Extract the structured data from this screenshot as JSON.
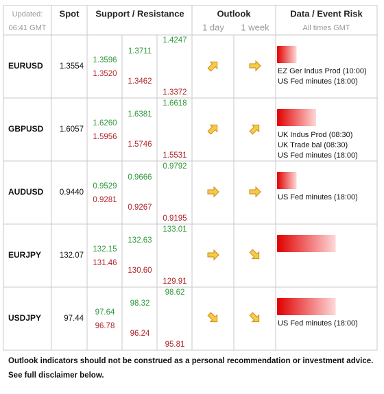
{
  "header": {
    "updated_label": "Updated:",
    "updated_time": "06:41 GMT",
    "spot": "Spot",
    "support_resistance": "Support / Resistance",
    "outlook": "Outlook",
    "outlook_day": "1 day",
    "outlook_week": "1 week",
    "data_risk": "Data / Event Risk",
    "times_note": "All times GMT"
  },
  "rows": [
    {
      "pair": "EURUSD",
      "spot": "1.3554",
      "resistance": [
        "1.3596",
        "1.3711",
        "1.4247"
      ],
      "support": [
        "1.3520",
        "1.3462",
        "1.3372"
      ],
      "outlook": [
        "up-right",
        "right"
      ],
      "risk": 1,
      "events": [
        "EZ Ger Indus Prod (10:00)",
        "US Fed minutes (18:00)"
      ]
    },
    {
      "pair": "GBPUSD",
      "spot": "1.6057",
      "resistance": [
        "1.6260",
        "1.6381",
        "1.6618"
      ],
      "support": [
        "1.5956",
        "1.5746",
        "1.5531"
      ],
      "outlook": [
        "up-right",
        "up-right"
      ],
      "risk": 2,
      "events": [
        "UK Indus Prod (08:30)",
        "UK Trade bal (08:30)",
        "US Fed minutes (18:00)"
      ]
    },
    {
      "pair": "AUDUSD",
      "spot": "0.9440",
      "resistance": [
        "0.9529",
        "0.9666",
        "0.9792"
      ],
      "support": [
        "0.9281",
        "0.9267",
        "0.9195"
      ],
      "outlook": [
        "right",
        "right"
      ],
      "risk": 1,
      "events": [
        "US Fed minutes (18:00)"
      ]
    },
    {
      "pair": "EURJPY",
      "spot": "132.07",
      "resistance": [
        "132.15",
        "132.63",
        "133.01"
      ],
      "support": [
        "131.46",
        "130.60",
        "129.91"
      ],
      "outlook": [
        "right",
        "down-right"
      ],
      "risk": 3,
      "events": []
    },
    {
      "pair": "USDJPY",
      "spot": "97.44",
      "resistance": [
        "97.64",
        "98.32",
        "98.62"
      ],
      "support": [
        "96.78",
        "96.24",
        "95.81"
      ],
      "outlook": [
        "down-right",
        "down-right"
      ],
      "risk": 3,
      "events": [
        "US Fed minutes (18:00)"
      ]
    }
  ],
  "footer": {
    "line1": "Outlook indicators should not be construed as a personal recommendation or investment advice.",
    "line2": "See full disclaimer below."
  }
}
